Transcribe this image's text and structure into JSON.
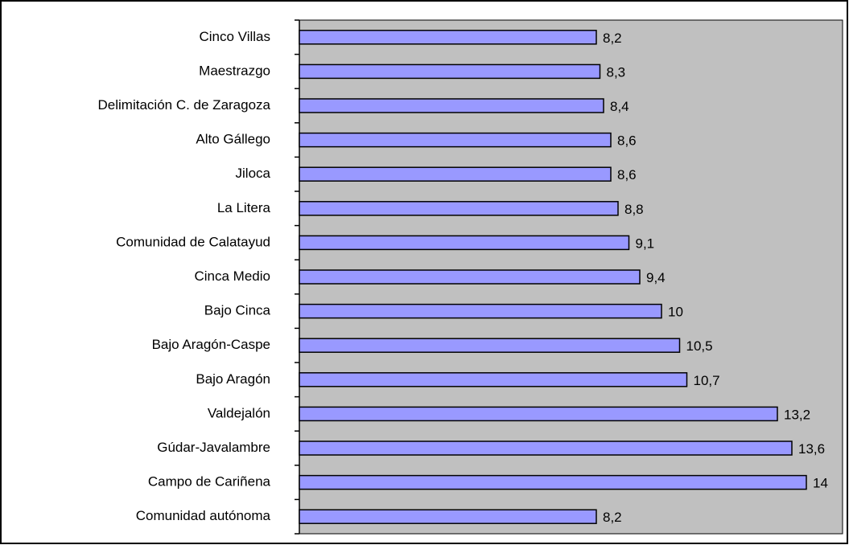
{
  "chart_data": {
    "type": "bar",
    "orientation": "horizontal",
    "categories": [
      "Cinco Villas",
      "Maestrazgo",
      "Delimitación C. de Zaragoza",
      "Alto Gállego",
      "Jiloca",
      "La Litera",
      "Comunidad de Calatayud",
      "Cinca Medio",
      "Bajo Cinca",
      "Bajo Aragón-Caspe",
      "Bajo Aragón",
      "Valdejalón",
      "Gúdar-Javalambre",
      "Campo de Cariñena",
      "Comunidad autónoma"
    ],
    "values": [
      8.2,
      8.3,
      8.4,
      8.6,
      8.6,
      8.8,
      9.1,
      9.4,
      10,
      10.5,
      10.7,
      13.2,
      13.6,
      14,
      8.2
    ],
    "value_labels": [
      "8,2",
      "8,3",
      "8,4",
      "8,6",
      "8,6",
      "8,8",
      "9,1",
      "9,4",
      "10",
      "10,5",
      "10,7",
      "13,2",
      "13,6",
      "14",
      "8,2"
    ],
    "color": "#9999ff",
    "plot_background": "#c0c0c0",
    "xlim": [
      0,
      15
    ]
  }
}
